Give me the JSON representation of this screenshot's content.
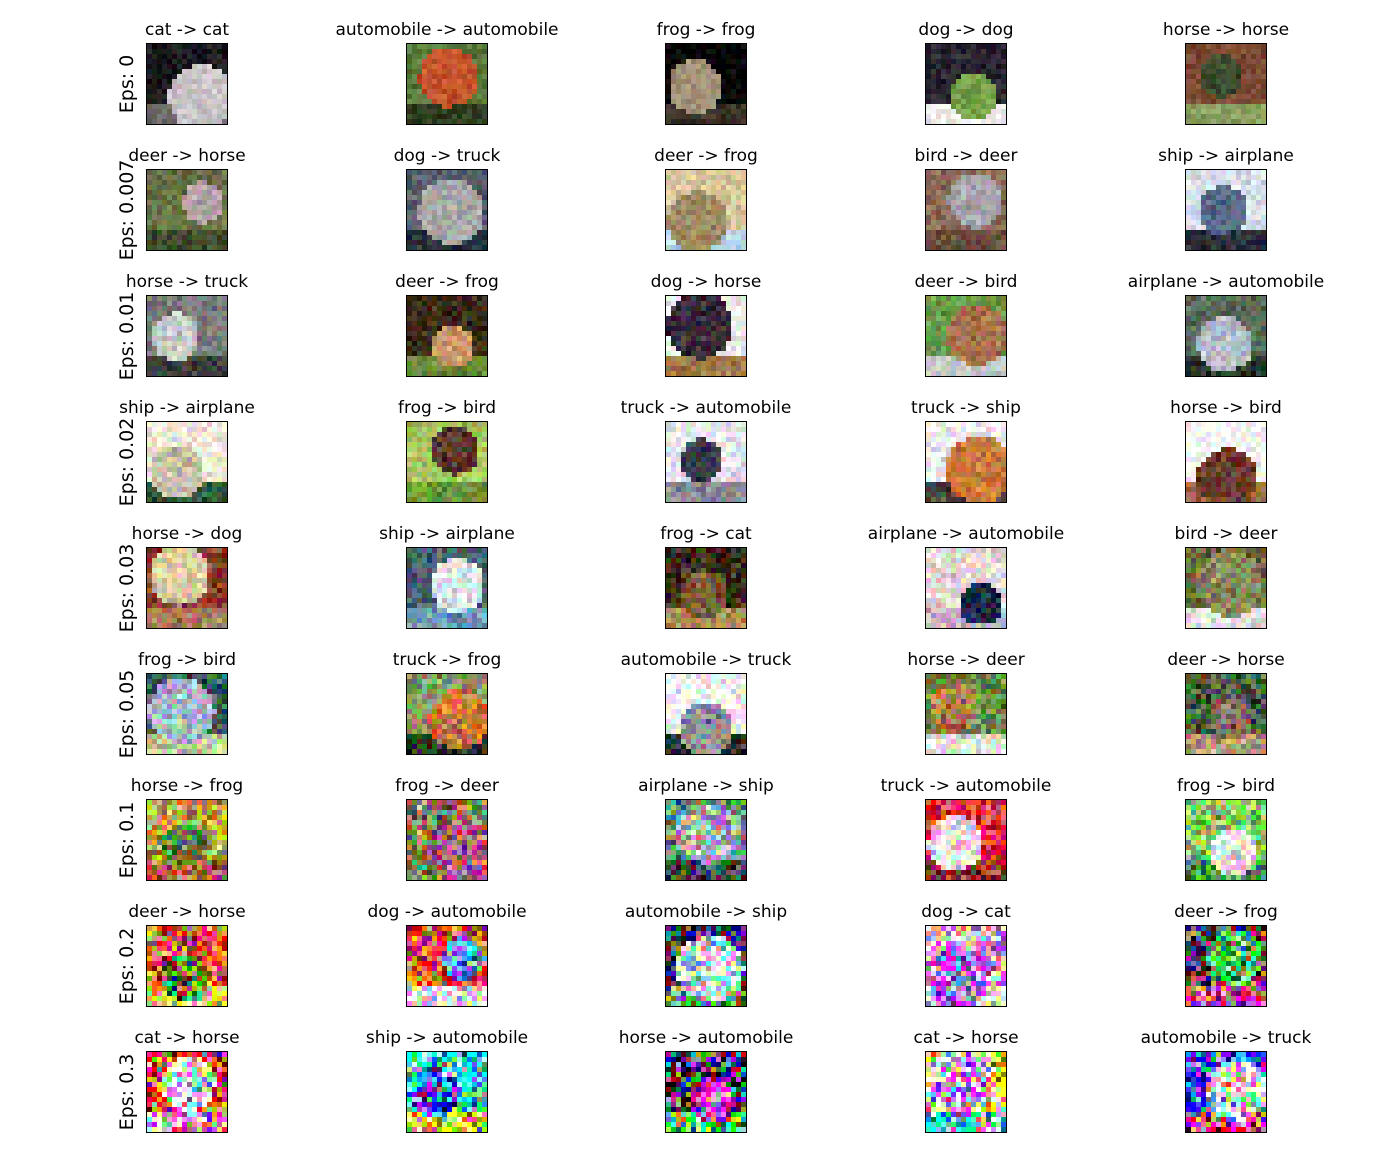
{
  "chart_data": {
    "type": "image-grid",
    "title": "",
    "rows": [
      {
        "label": "Eps: 0",
        "cells": [
          {
            "title": "cat -> cat",
            "true": "cat",
            "pred": "cat",
            "colors": [
              "#1b1b1f",
              "#c9c3c7",
              "#6b6566"
            ]
          },
          {
            "title": "automobile -> automobile",
            "true": "automobile",
            "pred": "automobile",
            "colors": [
              "#5a7a3a",
              "#c4542c",
              "#2f3f22"
            ]
          },
          {
            "title": "frog -> frog",
            "true": "frog",
            "pred": "frog",
            "colors": [
              "#050505",
              "#a29278",
              "#3a332a"
            ]
          },
          {
            "title": "dog -> dog",
            "true": "dog",
            "pred": "dog",
            "colors": [
              "#2a2530",
              "#76a04a",
              "#f2f2ee"
            ]
          },
          {
            "title": "horse -> horse",
            "true": "horse",
            "pred": "horse",
            "colors": [
              "#7d4a34",
              "#3a4a2a",
              "#8aa060"
            ]
          }
        ]
      },
      {
        "label": "Eps: 0.007",
        "cells": [
          {
            "title": "deer -> horse",
            "true": "deer",
            "pred": "horse",
            "colors": [
              "#6a7445",
              "#b4a3a6",
              "#3d4a2a"
            ]
          },
          {
            "title": "dog -> truck",
            "true": "dog",
            "pred": "truck",
            "colors": [
              "#585e6d",
              "#a8a8a8",
              "#2a2f3a"
            ]
          },
          {
            "title": "deer -> frog",
            "true": "deer",
            "pred": "frog",
            "colors": [
              "#d6c59a",
              "#9d8a62",
              "#b8d8e8"
            ]
          },
          {
            "title": "bird -> deer",
            "true": "bird",
            "pred": "deer",
            "colors": [
              "#8a6a56",
              "#a7a7ad",
              "#6a4e3f"
            ]
          },
          {
            "title": "ship -> airplane",
            "true": "ship",
            "pred": "airplane",
            "colors": [
              "#d6dfea",
              "#5a6a88",
              "#2a2e3a"
            ]
          }
        ]
      },
      {
        "label": "Eps: 0.01",
        "cells": [
          {
            "title": "horse -> truck",
            "true": "horse",
            "pred": "truck",
            "colors": [
              "#7a7a7a",
              "#c8c8c8",
              "#3a3a3a"
            ]
          },
          {
            "title": "deer -> frog",
            "true": "deer",
            "pred": "frog",
            "colors": [
              "#3a2a1a",
              "#c89a6a",
              "#6a8a3a"
            ]
          },
          {
            "title": "dog -> horse",
            "true": "dog",
            "pred": "horse",
            "colors": [
              "#f2f0ec",
              "#3a2a3a",
              "#a07a4a"
            ]
          },
          {
            "title": "deer -> bird",
            "true": "deer",
            "pred": "bird",
            "colors": [
              "#6a9a4a",
              "#a8704a",
              "#c8c8c8"
            ]
          },
          {
            "title": "airplane -> automobile",
            "true": "airplane",
            "pred": "automobile",
            "colors": [
              "#5a6a5a",
              "#b4bac8",
              "#2a3a2a"
            ]
          }
        ]
      },
      {
        "label": "Eps: 0.02",
        "cells": [
          {
            "title": "ship -> airplane",
            "true": "ship",
            "pred": "airplane",
            "colors": [
              "#f0ead8",
              "#c8c0a8",
              "#2a5a3a"
            ]
          },
          {
            "title": "frog -> bird",
            "true": "frog",
            "pred": "bird",
            "colors": [
              "#a8c860",
              "#5a3a2a",
              "#6a9a3a"
            ]
          },
          {
            "title": "truck -> automobile",
            "true": "truck",
            "pred": "automobile",
            "colors": [
              "#e8e8ee",
              "#3a3a4a",
              "#8a8a98"
            ]
          },
          {
            "title": "truck -> ship",
            "true": "truck",
            "pred": "ship",
            "colors": [
              "#eeeeec",
              "#c87a3a",
              "#4a4a4a"
            ]
          },
          {
            "title": "horse -> bird",
            "true": "horse",
            "pred": "bird",
            "colors": [
              "#fafafa",
              "#6a3a2a",
              "#a8704a"
            ]
          }
        ]
      },
      {
        "label": "Eps: 0.03",
        "cells": [
          {
            "title": "horse -> dog",
            "true": "horse",
            "pred": "dog",
            "colors": [
              "#8a3a2a",
              "#d8c8a8",
              "#a87a5a"
            ]
          },
          {
            "title": "ship -> airplane",
            "true": "ship",
            "pred": "airplane",
            "colors": [
              "#4a5a6a",
              "#dde4ee",
              "#6a9ab8"
            ]
          },
          {
            "title": "frog -> cat",
            "true": "frog",
            "pred": "cat",
            "colors": [
              "#3a2a1a",
              "#7a5a3a",
              "#a88a5a"
            ]
          },
          {
            "title": "airplane -> automobile",
            "true": "airplane",
            "pred": "automobile",
            "colors": [
              "#e8dad6",
              "#1a2a4a",
              "#c8b8c8"
            ]
          },
          {
            "title": "bird -> deer",
            "true": "bird",
            "pred": "deer",
            "colors": [
              "#6a6a3a",
              "#8a8a5a",
              "#e8e8e8"
            ]
          }
        ]
      },
      {
        "label": "Eps: 0.05",
        "cells": [
          {
            "title": "frog -> bird",
            "true": "frog",
            "pred": "bird",
            "colors": [
              "#3a5a5a",
              "#a8b8c8",
              "#c8c898"
            ]
          },
          {
            "title": "truck -> frog",
            "true": "truck",
            "pred": "frog",
            "colors": [
              "#8a9a6a",
              "#c87a3a",
              "#2a3a2a"
            ]
          },
          {
            "title": "automobile -> truck",
            "true": "automobile",
            "pred": "truck",
            "colors": [
              "#f4f4f6",
              "#8a8a92",
              "#2a2a2e"
            ]
          },
          {
            "title": "horse -> deer",
            "true": "horse",
            "pred": "deer",
            "colors": [
              "#6a8a4a",
              "#a8804a",
              "#e0e0d8"
            ]
          },
          {
            "title": "deer -> horse",
            "true": "deer",
            "pred": "horse",
            "colors": [
              "#4a5a3a",
              "#8a6a5a",
              "#b89a7a"
            ]
          }
        ]
      },
      {
        "label": "Eps: 0.1",
        "cells": [
          {
            "title": "horse -> frog",
            "true": "horse",
            "pred": "frog",
            "colors": [
              "#c8a84a",
              "#5a7a3a",
              "#a86a4a"
            ]
          },
          {
            "title": "frog -> deer",
            "true": "frog",
            "pred": "deer",
            "colors": [
              "#8a7a5a",
              "#a85a7a",
              "#6a8a5a"
            ]
          },
          {
            "title": "airplane -> ship",
            "true": "airplane",
            "pred": "ship",
            "colors": [
              "#6a8a7a",
              "#a8a8b8",
              "#3a4a4a"
            ]
          },
          {
            "title": "truck -> automobile",
            "true": "truck",
            "pred": "automobile",
            "colors": [
              "#e82a3a",
              "#f4e8ee",
              "#8a2a2a"
            ]
          },
          {
            "title": "frog -> bird",
            "true": "frog",
            "pred": "bird",
            "colors": [
              "#8ac86a",
              "#f0f0ea",
              "#4a8a4a"
            ]
          }
        ]
      },
      {
        "label": "Eps: 0.2",
        "cells": [
          {
            "title": "deer -> horse",
            "true": "deer",
            "pred": "horse",
            "colors": [
              "#e86a2a",
              "#5a7a2a",
              "#f0d85a"
            ]
          },
          {
            "title": "dog -> automobile",
            "true": "dog",
            "pred": "automobile",
            "colors": [
              "#e84a2a",
              "#4a9ae8",
              "#f0e8f0"
            ]
          },
          {
            "title": "automobile -> ship",
            "true": "automobile",
            "pred": "ship",
            "colors": [
              "#2a2a5a",
              "#c8e8f0",
              "#6a8a5a"
            ]
          },
          {
            "title": "dog -> cat",
            "true": "dog",
            "pred": "cat",
            "colors": [
              "#e8a8d8",
              "#a86ae8",
              "#f4f4f4"
            ]
          },
          {
            "title": "deer -> frog",
            "true": "deer",
            "pred": "frog",
            "colors": [
              "#6a2a4a",
              "#5ac85a",
              "#c85a8a"
            ]
          }
        ]
      },
      {
        "label": "Eps: 0.3",
        "cells": [
          {
            "title": "cat -> horse",
            "true": "cat",
            "pred": "horse",
            "colors": [
              "#e82a2a",
              "#f4f0f4",
              "#e8a8e8"
            ]
          },
          {
            "title": "ship -> automobile",
            "true": "ship",
            "pred": "automobile",
            "colors": [
              "#2ae8e8",
              "#3a5ae8",
              "#f0e82a"
            ]
          },
          {
            "title": "horse -> automobile",
            "true": "horse",
            "pred": "automobile",
            "colors": [
              "#2a2a4a",
              "#e82ae8",
              "#5ae85a"
            ]
          },
          {
            "title": "cat -> horse",
            "true": "cat",
            "pred": "horse",
            "colors": [
              "#f0e85a",
              "#e8a8f0",
              "#5ae8e8"
            ]
          },
          {
            "title": "automobile -> truck",
            "true": "automobile",
            "pred": "truck",
            "colors": [
              "#2a2ae8",
              "#e8e8e8",
              "#e82a8a"
            ]
          }
        ]
      }
    ]
  }
}
